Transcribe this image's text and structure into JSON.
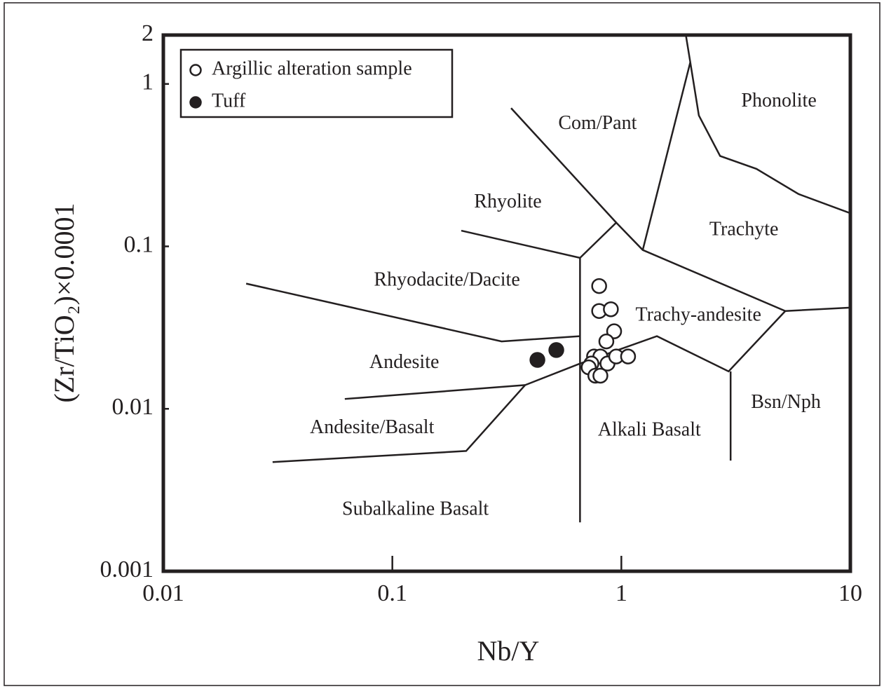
{
  "chart_data": {
    "type": "scatter",
    "xlabel": "Nb/Y",
    "ylabel": "(Zr/TiO₂)×0.0001",
    "xlim": [
      0.01,
      10
    ],
    "ylim": [
      0.001,
      2
    ],
    "xticks": [
      0.01,
      0.1,
      1,
      10
    ],
    "yticks": [
      0.001,
      0.01,
      0.1,
      1,
      2
    ],
    "log_x": true,
    "log_y": true,
    "legend": "upper left",
    "series": [
      {
        "name": "Argillic alteration sample",
        "marker": "open",
        "color": "#231f20",
        "x": [
          0.8,
          0.8,
          0.9,
          0.93,
          0.86,
          0.76,
          0.81,
          0.74,
          0.72,
          0.87,
          0.95,
          1.07,
          0.77,
          0.81
        ],
        "y": [
          0.057,
          0.04,
          0.041,
          0.03,
          0.026,
          0.021,
          0.021,
          0.019,
          0.018,
          0.019,
          0.021,
          0.021,
          0.016,
          0.016
        ]
      },
      {
        "name": "Tuff",
        "marker": "filled",
        "color": "#231f20",
        "x": [
          0.43,
          0.52
        ],
        "y": [
          0.02,
          0.023
        ]
      }
    ],
    "annotations": [
      "Phonolite",
      "Com/Pant",
      "Rhyolite",
      "Trachyte",
      "Rhyodacite/Dacite",
      "Trachy-andesite",
      "Andesite",
      "Bsn/Nph",
      "Andesite/Basalt",
      "Alkali Basalt",
      "Subalkaline Basalt"
    ],
    "boundaries": [
      {
        "x": [
          0.023,
          0.3,
          0.66
        ],
        "y": [
          0.059,
          0.026,
          0.028
        ]
      },
      {
        "x": [
          0.062,
          0.38
        ],
        "y": [
          0.0115,
          0.014
        ]
      },
      {
        "x": [
          0.03,
          0.21,
          0.38,
          0.66,
          1.43,
          2.94,
          5.2,
          10
        ],
        "y": [
          0.0047,
          0.0055,
          0.014,
          0.019,
          0.028,
          0.017,
          0.04,
          0.042
        ]
      },
      {
        "x": [
          0.2,
          0.66,
          0.66
        ],
        "y": [
          0.125,
          0.085,
          0.002
        ]
      },
      {
        "x": [
          0.66,
          0.95,
          1.24,
          5.2
        ],
        "y": [
          0.085,
          0.14,
          0.095,
          0.04
        ]
      },
      {
        "x": [
          0.33,
          0.95
        ],
        "y": [
          0.71,
          0.14
        ]
      },
      {
        "x": [
          1.24,
          2.0,
          1.9,
          1.77
        ],
        "y": [
          0.095,
          1.36,
          2.12,
          4.9
        ]
      },
      {
        "x": [
          2.0,
          2.18,
          2.7,
          3.89,
          5.94,
          10
        ],
        "y": [
          1.36,
          0.64,
          0.36,
          0.3,
          0.21,
          0.16
        ]
      },
      {
        "x": [
          3.0,
          3.0
        ],
        "y": [
          0.017,
          0.0048
        ]
      }
    ]
  }
}
